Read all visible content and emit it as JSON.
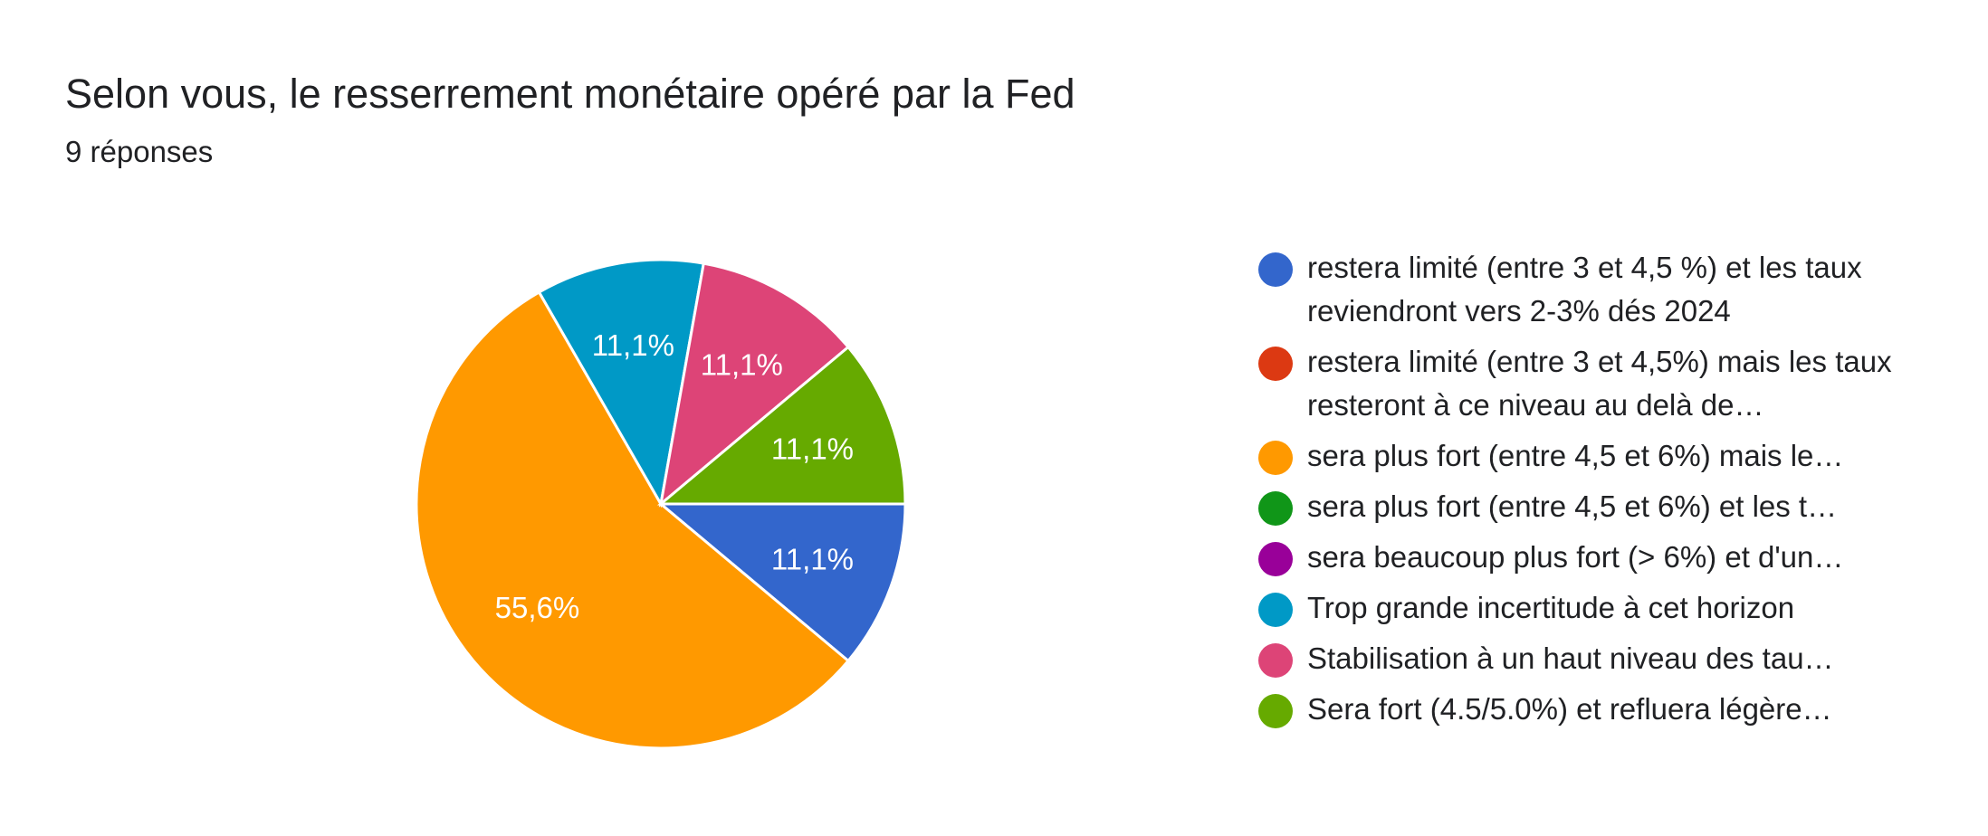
{
  "header": {
    "title": "Selon vous, le resserrement monétaire opéré par la Fed",
    "responses": "9 réponses"
  },
  "chart_data": {
    "type": "pie",
    "title": "Selon vous, le resserrement monétaire opéré par la Fed",
    "subtitle": "9 réponses",
    "legend_position": "right",
    "slices": [
      {
        "label": "restera limité (entre 3 et 4,5 %) et les taux reviendront vers 2-3% dés 2024",
        "display": "restera limité (entre 3 et 4,5 %) et les taux reviendront vers 2-3% dés 2024",
        "value": 11.1,
        "pct_label": "11,1%",
        "color": "#3366cc"
      },
      {
        "label": "restera limité (entre 3 et 4,5%) mais les taux resteront à ce niveau au delà de…",
        "display": "restera limité (entre 3 et 4,5%) mais les taux resteront à ce niveau au delà de…",
        "value": 0,
        "pct_label": "",
        "color": "#dc3912"
      },
      {
        "label": "sera plus fort (entre 4,5 et 6%) mais le…",
        "display": "sera plus fort (entre 4,5 et 6%) mais le…",
        "value": 55.6,
        "pct_label": "55,6%",
        "color": "#ff9900"
      },
      {
        "label": "sera plus fort (entre 4,5 et 6%) et les t…",
        "display": "sera plus fort (entre 4,5 et 6%) et les t…",
        "value": 0,
        "pct_label": "",
        "color": "#109618"
      },
      {
        "label": "sera beaucoup plus fort (> 6%) et d'un…",
        "display": "sera beaucoup plus fort (> 6%) et d'un…",
        "value": 0,
        "pct_label": "",
        "color": "#990099"
      },
      {
        "label": "Trop grande incertitude à cet horizon",
        "display": "Trop grande incertitude à cet horizon",
        "value": 11.1,
        "pct_label": "11,1%",
        "color": "#0099c6"
      },
      {
        "label": "Stabilisation à un haut niveau des tau…",
        "display": "Stabilisation à un haut niveau des tau…",
        "value": 11.1,
        "pct_label": "11,1%",
        "color": "#dd4477"
      },
      {
        "label": "Sera fort (4.5/5.0%) et refluera légère…",
        "display": "Sera fort (4.5/5.0%) et refluera légère…",
        "value": 11.1,
        "pct_label": "11,1%",
        "color": "#66aa00"
      }
    ]
  }
}
